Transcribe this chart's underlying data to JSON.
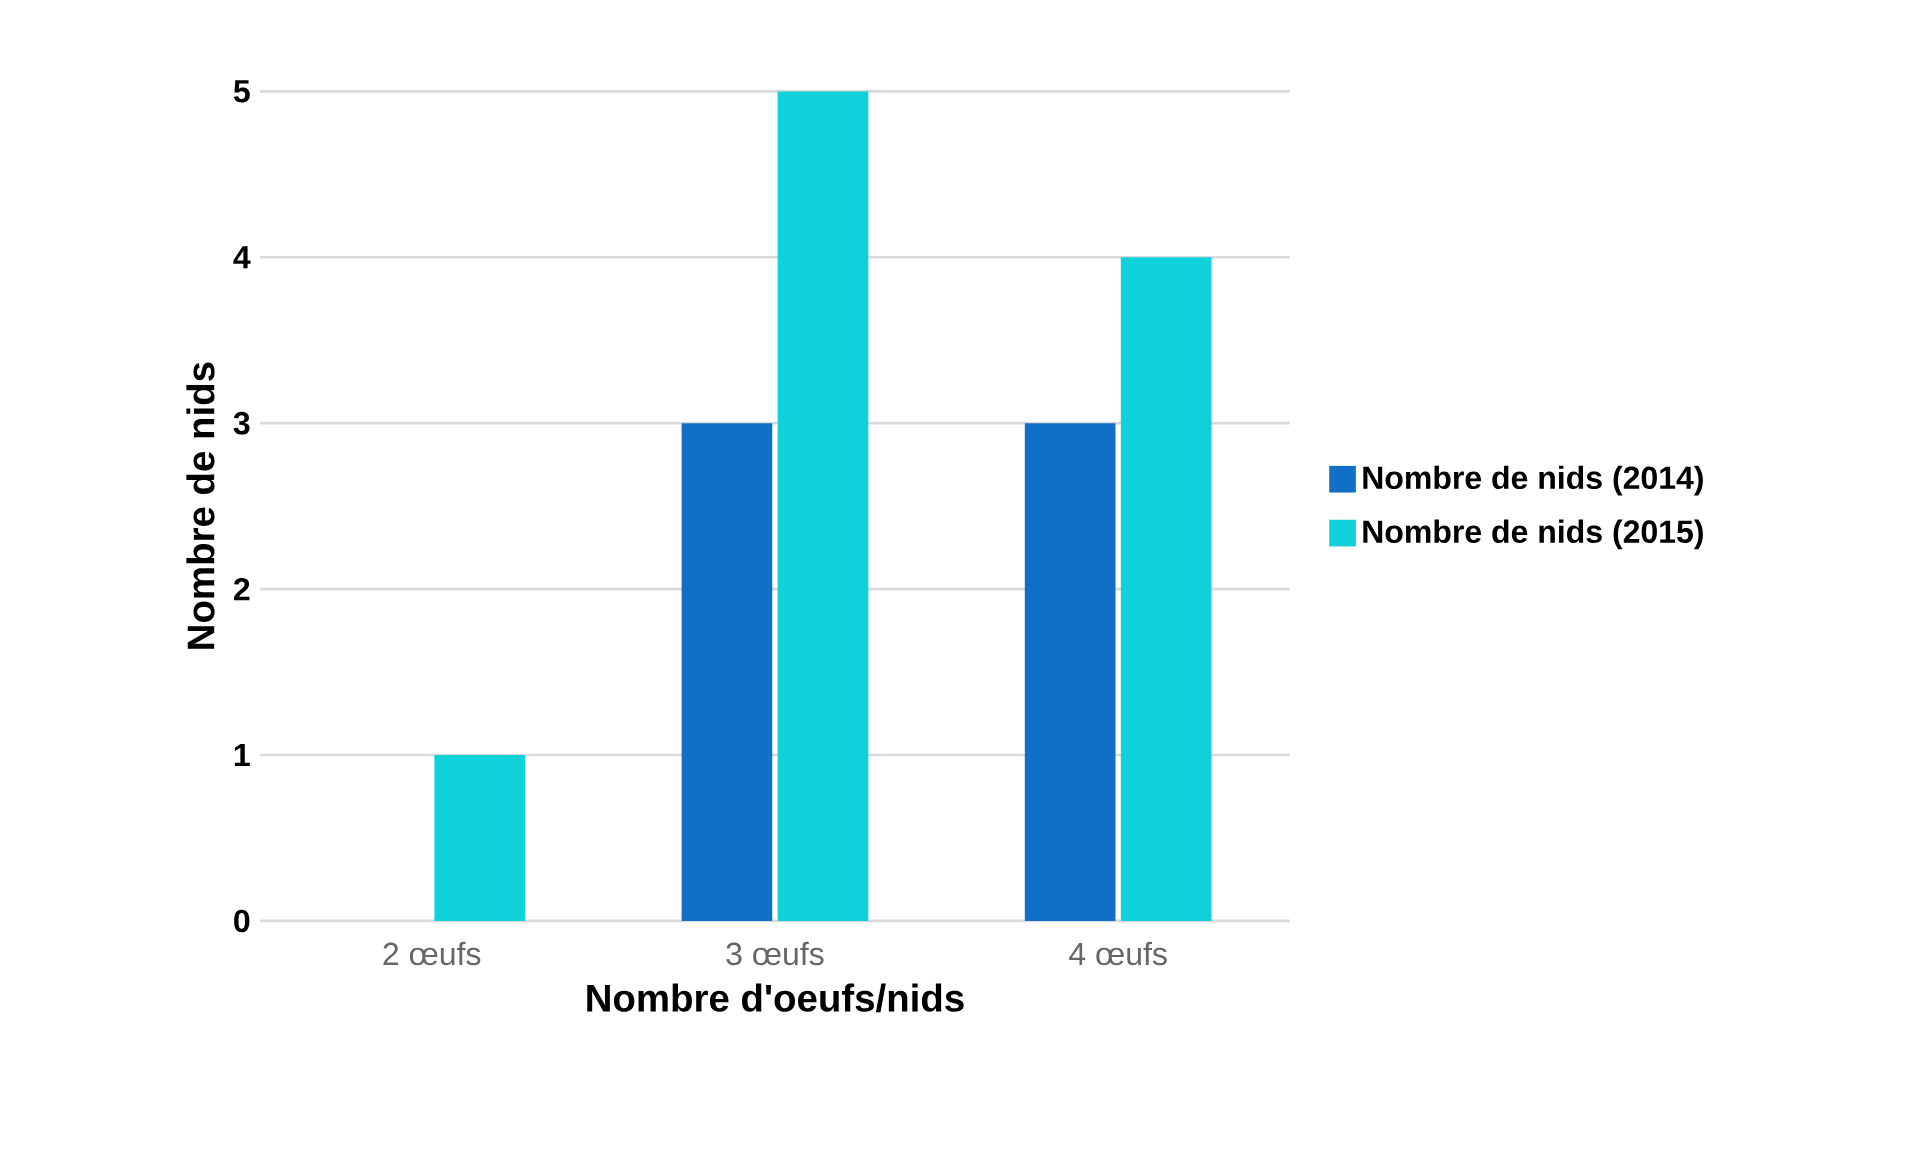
{
  "chart_data": {
    "type": "bar",
    "xlabel": "Nombre d'oeufs/nids",
    "ylabel": "Nombre de nids",
    "categories": [
      "2 œufs",
      "3 œufs",
      "4 œufs"
    ],
    "series": [
      {
        "name": "Nombre de nids (2014)",
        "color": "#1170c6",
        "values": [
          0,
          3,
          3
        ]
      },
      {
        "name": "Nombre de nids (2015)",
        "color": "#0fd1d9",
        "values": [
          1,
          5,
          4
        ]
      }
    ],
    "ylim": [
      0,
      5
    ],
    "yticks": [
      0,
      1,
      2,
      3,
      4,
      5
    ],
    "grid": "y",
    "legend": "right"
  }
}
